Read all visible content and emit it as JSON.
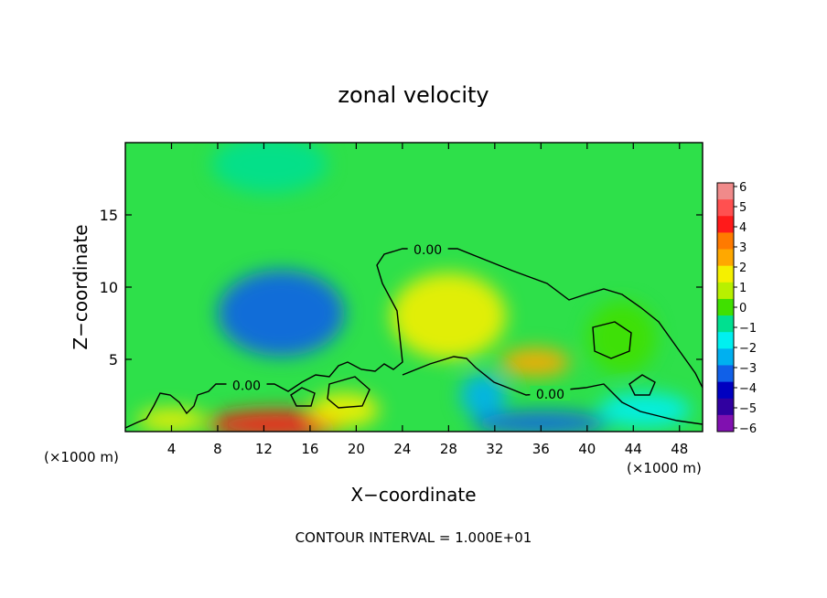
{
  "chart_data": {
    "type": "heatmap",
    "title": "zonal velocity",
    "xlabel": "X−coordinate",
    "ylabel": "Z−coordinate",
    "x_unit_left": "(×1000 m)",
    "x_unit_right": "(×1000 m)",
    "xlim": [
      0,
      50
    ],
    "ylim": [
      0,
      20
    ],
    "x_ticks": [
      4,
      8,
      12,
      16,
      20,
      24,
      28,
      32,
      36,
      40,
      44,
      48
    ],
    "x_tick_labels": [
      "4",
      "8",
      "12",
      "16",
      "20",
      "24",
      "28",
      "32",
      "36",
      "40",
      "44",
      "48"
    ],
    "y_ticks": [
      5,
      10,
      15
    ],
    "y_tick_labels": [
      "5",
      "10",
      "15"
    ],
    "contour_labels": [
      {
        "text": "0.00",
        "x": 26.2,
        "y": 12.6
      },
      {
        "text": "0.00",
        "x": 10.5,
        "y": 3.2
      },
      {
        "text": "0.00",
        "x": 36.8,
        "y": 2.6
      }
    ],
    "colorbar": {
      "levels": [
        "6",
        "5",
        "4",
        "3",
        "2",
        "1",
        "0",
        "−1",
        "−2",
        "−3",
        "−4",
        "−5",
        "−6"
      ],
      "colors": [
        "#f08a8a",
        "#ff5050",
        "#ff1a1a",
        "#ff7a00",
        "#ffa800",
        "#f5f000",
        "#b8f000",
        "#40e000",
        "#00e090",
        "#00f0f0",
        "#00b0f0",
        "#1060e8",
        "#0000c0",
        "#3000a0",
        "#8010b0"
      ]
    },
    "blobs": [
      {
        "x": 13.5,
        "y": 8.2,
        "v": -4.2,
        "rx": 5.5,
        "ry": 3.0
      },
      {
        "x": 12.5,
        "y": 18.5,
        "v": -1.8,
        "rx": 5.0,
        "ry": 2.0
      },
      {
        "x": 35.5,
        "y": 4.8,
        "v": 3.0,
        "rx": 3.0,
        "ry": 1.0
      },
      {
        "x": 28.0,
        "y": 8.0,
        "v": 1.2,
        "rx": 5.0,
        "ry": 3.0
      },
      {
        "x": 31.0,
        "y": 2.5,
        "v": -3.0,
        "rx": 2.0,
        "ry": 1.5
      },
      {
        "x": 36.0,
        "y": 0.6,
        "v": -4.5,
        "rx": 6.0,
        "ry": 0.8
      },
      {
        "x": 13.0,
        "y": 0.5,
        "v": 4.5,
        "rx": 6.0,
        "ry": 1.0
      },
      {
        "x": 4.0,
        "y": 0.8,
        "v": 2.0,
        "rx": 3.0,
        "ry": 0.8
      },
      {
        "x": 19.0,
        "y": 1.5,
        "v": 2.0,
        "rx": 3.0,
        "ry": 1.2
      },
      {
        "x": 45.0,
        "y": 1.5,
        "v": -2.5,
        "rx": 4.0,
        "ry": 1.2
      },
      {
        "x": 43.0,
        "y": 6.5,
        "v": -0.6,
        "rx": 3.0,
        "ry": 2.5
      }
    ],
    "footnote": "CONTOUR INTERVAL = 1.000E+01"
  }
}
